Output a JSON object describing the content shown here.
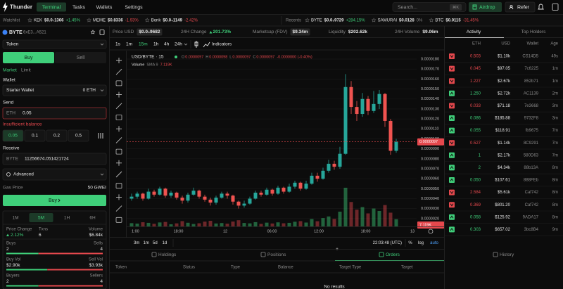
{
  "nav": {
    "brand": "Thunder",
    "tabs": [
      "Terminal",
      "Tasks",
      "Wallets",
      "Settings"
    ],
    "search": "Search...",
    "shortcut": "⌘K",
    "airdrop": "Airdrop",
    "refer": "Refer"
  },
  "watchlist": {
    "label": "Watchlist",
    "items": [
      {
        "symbol": "KEK",
        "price": "$0.0₇1366",
        "change": "+1.45%",
        "trend": "up"
      },
      {
        "symbol": "MEME",
        "price": "$0.8336",
        "change": "-1.93%",
        "trend": "down"
      },
      {
        "symbol": "Bonk",
        "price": "$0.0₄1149",
        "change": "-2.42%",
        "trend": "down"
      }
    ]
  },
  "recents": {
    "label": "Recents",
    "items": [
      {
        "symbol": "BYTE",
        "price": "$0.0₅9729",
        "change": "+284.15%",
        "trend": "up"
      },
      {
        "symbol": "SAMURAI",
        "price": "$0.0128",
        "change": "0%",
        "trend": "flat"
      },
      {
        "symbol": "BTC",
        "price": "$0.0115",
        "change": "-31.45%",
        "trend": "down"
      }
    ]
  },
  "token": {
    "symbol": "BYTE",
    "address": "6xE3...A521"
  },
  "trade": {
    "token_select": "Token",
    "buy": "Buy",
    "sell": "Sell",
    "order_types": [
      "Market",
      "Limit"
    ],
    "wallet_label": "Wallet",
    "wallet": "Starter Wallet",
    "wallet_balance": "0 ETH",
    "send_label": "Send",
    "send_currency": "ETH",
    "send_amount": "0.05",
    "error": "Insufficient balance",
    "presets": [
      "0.05",
      "0.1",
      "0.2",
      "0.5"
    ],
    "receive_label": "Receive",
    "receive_currency": "BYTE",
    "receive_amount": "11256674.051421724",
    "advanced": "Advanced",
    "gas_label": "Gas Price",
    "gas_value": "50 GWEI",
    "submit": "Buy"
  },
  "stats": {
    "tabs": [
      "1M",
      "5M",
      "1H",
      "6H"
    ],
    "price_change_label": "Price Change",
    "price_change": "2.12%",
    "txns_label": "Txns",
    "txns": 6,
    "volume_label": "Volume",
    "volume": "$6.84k",
    "buys_label": "Buys",
    "buys": 2,
    "sells_label": "Sells",
    "sells": 4,
    "buy_vol_label": "Buy Vol",
    "buy_vol": {
      "value": 2900,
      "label": "$2.90k"
    },
    "sell_vol_label": "Sell Vol",
    "sell_vol": {
      "value": 3930,
      "label": "$3.93k"
    },
    "buyers_label": "Buyers",
    "buyers": 2,
    "sellers_label": "Sellers",
    "sellers": 4
  },
  "market": [
    {
      "label": "Price USD",
      "value": "$0.0₅9682",
      "style": "box"
    },
    {
      "label": "24H Change",
      "value": "201.73%",
      "style": "up"
    },
    {
      "label": "Marketcap (FDV)",
      "value": "$9.34m",
      "style": "box"
    },
    {
      "label": "Liquidity",
      "value": "$202.62k",
      "style": "plain"
    },
    {
      "label": "24H Volume",
      "value": "$9.06m",
      "style": "plain"
    }
  ],
  "chart": {
    "type": "candlestick",
    "timeframes": [
      "1s",
      "1m",
      "15m",
      "1h",
      "4h",
      "24h"
    ],
    "indicators": "Indicators",
    "pair": "USD/BYTE · 15",
    "ohlc": [
      {
        "key": "O",
        "value": "0.0000097"
      },
      {
        "key": "H",
        "value": "0.0000098"
      },
      {
        "key": "L",
        "value": "0.0000097"
      },
      {
        "key": "C",
        "value": "0.0000097"
      }
    ],
    "change": "-0.0000000 (-0.40%)",
    "volume_label": "Volume",
    "sma_label": "SMA 9",
    "sma_value": "7.119K",
    "last_price": {
      "value": 9.7e-06,
      "label": "0.0000097"
    },
    "ylim": [
      1e-06,
      1.85e-05
    ],
    "yticks": [
      {
        "value": 1.8e-05,
        "label": "0.0000180"
      },
      {
        "value": 1.7e-05,
        "label": "0.0000170"
      },
      {
        "value": 1.6e-05,
        "label": "0.0000160"
      },
      {
        "value": 1.5e-05,
        "label": "0.0000150"
      },
      {
        "value": 1.4e-05,
        "label": "0.0000140"
      },
      {
        "value": 1.3e-05,
        "label": "0.0000130"
      },
      {
        "value": 1.2e-05,
        "label": "0.0000120"
      },
      {
        "value": 1.1e-05,
        "label": "0.0000110"
      },
      {
        "value": 1e-05,
        "label": "0.0000100"
      },
      {
        "value": 9e-06,
        "label": "0.0000090"
      },
      {
        "value": 8e-06,
        "label": "0.0000080"
      },
      {
        "value": 7e-06,
        "label": "0.0000070"
      },
      {
        "value": 6e-06,
        "label": "0.0000060"
      },
      {
        "value": 5e-06,
        "label": "0.0000050"
      },
      {
        "value": 4e-06,
        "label": "0.0000040"
      },
      {
        "value": 3e-06,
        "label": "0.0000030"
      },
      {
        "value": 2e-06,
        "label": "0.0000020"
      }
    ],
    "x_labels": [
      "1:00",
      "18:00",
      "12",
      "06:00",
      "12:00",
      "18:00",
      "13"
    ],
    "open": [
      4e-06,
      4.2e-06,
      4.5e-06,
      4e-06,
      4.7e-06,
      4.4e-06,
      5e-06,
      4.3e-06,
      4.6e-06,
      4.1e-06,
      3.8e-06,
      4.4e-06,
      4.8e-06,
      4.2e-06,
      3.9e-06,
      3.6e-06,
      4.1e-06,
      4.5e-06,
      4.3e-06,
      3.7e-06,
      3.3e-06,
      3.5e-06,
      4e-06,
      4.6e-06,
      4.4e-06,
      4.9e-06,
      4.5e-06,
      5.1e-06,
      4.7e-06,
      5.2e-06,
      5.6e-06,
      5e-06,
      5.5e-06,
      6.3e-06,
      6e-06,
      6.8e-06,
      7.5e-06,
      7.2e-06,
      8.5e-06,
      1.52e-05,
      1.32e-05,
      1.25e-05,
      1.4e-05,
      1.28e-05,
      1.35e-05,
      1.45e-05,
      1.18e-05,
      8.8e-06
    ],
    "high": [
      4.5e-06,
      4.7e-06,
      4.6e-06,
      5e-06,
      4.9e-06,
      5.2e-06,
      5.1e-06,
      4.8e-06,
      4.7e-06,
      4.3e-06,
      4.6e-06,
      5.1e-06,
      4.9e-06,
      4.4e-06,
      4.1e-06,
      4.3e-06,
      4.7e-06,
      4.7e-06,
      4.4e-06,
      3.8e-06,
      3.8e-06,
      4.2e-06,
      4.8e-06,
      4.8e-06,
      5.1e-06,
      5e-06,
      5.3e-06,
      5.2e-06,
      5.5e-06,
      5.8e-06,
      5.7e-06,
      5.8e-06,
      6.6e-06,
      6.6e-06,
      7.1e-06,
      7.9e-06,
      7.8e-06,
      9.2e-06,
      1.65e-05,
      1.58e-05,
      1.38e-05,
      1.46e-05,
      1.43e-05,
      1.48e-05,
      1.49e-05,
      1.46e-05,
      1.2e-05,
      1e-05
    ],
    "low": [
      3.8e-06,
      4e-06,
      3.8e-06,
      3.9e-06,
      4.2e-06,
      4.3e-06,
      4.1e-06,
      4.1e-06,
      3.9e-06,
      3.5e-06,
      3.6e-06,
      4.3e-06,
      4e-06,
      3.7e-06,
      3.3e-06,
      3.4e-06,
      4e-06,
      4e-06,
      3.4e-06,
      3e-06,
      3.1e-06,
      3.4e-06,
      3.9e-06,
      4.2e-06,
      4.3e-06,
      4.3e-06,
      4.4e-06,
      4.5e-06,
      4.6e-06,
      5e-06,
      4.8e-06,
      4.9e-06,
      5.4e-06,
      5.7e-06,
      5.9e-06,
      6.6e-06,
      6.9e-06,
      7e-06,
      8.4e-06,
      1.25e-05,
      1.18e-05,
      1.22e-05,
      1.24e-05,
      1.26e-05,
      1.3e-05,
      1.12e-05,
      8.4e-06,
      8.6e-06
    ],
    "close": [
      4.2e-06,
      4.5e-06,
      4e-06,
      4.7e-06,
      4.4e-06,
      5e-06,
      4.3e-06,
      4.6e-06,
      4.1e-06,
      3.8e-06,
      4.4e-06,
      4.8e-06,
      4.2e-06,
      3.9e-06,
      3.6e-06,
      4.1e-06,
      4.5e-06,
      4.3e-06,
      3.7e-06,
      3.3e-06,
      3.5e-06,
      4e-06,
      4.6e-06,
      4.4e-06,
      4.9e-06,
      4.5e-06,
      5.1e-06,
      4.7e-06,
      5.2e-06,
      5.6e-06,
      5e-06,
      5.5e-06,
      6.3e-06,
      6e-06,
      6.8e-06,
      7.5e-06,
      7.2e-06,
      8.5e-06,
      1.52e-05,
      1.32e-05,
      1.25e-05,
      1.4e-05,
      1.28e-05,
      1.35e-05,
      1.45e-05,
      1.18e-05,
      8.8e-06,
      9.7e-06
    ],
    "volume": [
      3200,
      2800,
      4100,
      3500,
      2600,
      3900,
      4400,
      2100,
      3000,
      5200,
      3600,
      2400,
      3100,
      4700,
      5500,
      2900,
      3300,
      2700,
      4800,
      6100,
      3400,
      3000,
      4200,
      2500,
      3700,
      2900,
      4000,
      3100,
      3500,
      4600,
      5200,
      3800,
      7300,
      5100,
      8200,
      9800,
      7400,
      14500,
      38000,
      24000,
      16500,
      19000,
      12800,
      17600,
      15200,
      21000,
      13500,
      7119
    ],
    "ranges": [
      "3m",
      "1m",
      "5d",
      "1d"
    ],
    "clock": "22:03:48 (UTC)",
    "scale_options": [
      "%",
      "log",
      "auto"
    ]
  },
  "activity": {
    "tabs": [
      "Activity",
      "Top Holders"
    ],
    "columns": [
      "ETH",
      "USD",
      "Wallet",
      "Age"
    ],
    "rows": [
      {
        "side": "sell",
        "eth": "0.503",
        "usd": "$1.10k",
        "wallet": "CS14D5",
        "age": "49s"
      },
      {
        "side": "sell",
        "eth": "0.045",
        "usd": "$97.05",
        "wallet": "7c6225",
        "age": "1m"
      },
      {
        "side": "sell",
        "eth": "1.227",
        "usd": "$2.67k",
        "wallet": "852b71",
        "age": "1m"
      },
      {
        "side": "buy",
        "eth": "1.250",
        "usd": "$2.72k",
        "wallet": "AC1139",
        "age": "2m"
      },
      {
        "side": "sell",
        "eth": "0.033",
        "usd": "$71.18",
        "wallet": "7e3668",
        "age": "3m"
      },
      {
        "side": "buy",
        "eth": "0.086",
        "usd": "$185.88",
        "wallet": "9732F8",
        "age": "3m"
      },
      {
        "side": "buy",
        "eth": "0.055",
        "usd": "$118.91",
        "wallet": "fb9675",
        "age": "7m"
      },
      {
        "side": "sell",
        "eth": "0.527",
        "usd": "$1.14k",
        "wallet": "8C9291",
        "age": "7m"
      },
      {
        "side": "buy",
        "eth": "1",
        "usd": "$2.17k",
        "wallet": "580D63",
        "age": "7m"
      },
      {
        "side": "buy",
        "eth": "2",
        "usd": "$4.34k",
        "wallet": "88b13A",
        "age": "8m"
      },
      {
        "side": "buy",
        "eth": "0.050",
        "usd": "$107.61",
        "wallet": "888FEb",
        "age": "8m"
      },
      {
        "side": "sell",
        "eth": "2.584",
        "usd": "$5.61k",
        "wallet": "Caf742",
        "age": "8m"
      },
      {
        "side": "sell",
        "eth": "0.369",
        "usd": "$801.20",
        "wallet": "Caf742",
        "age": "8m"
      },
      {
        "side": "buy",
        "eth": "0.058",
        "usd": "$125.92",
        "wallet": "9ADA17",
        "age": "8m"
      },
      {
        "side": "buy",
        "eth": "0.303",
        "usd": "$657.02",
        "wallet": "3bc8B4",
        "age": "9m"
      }
    ]
  },
  "orders": {
    "tabs": [
      "Holdings",
      "Positions",
      "Orders",
      "History"
    ],
    "columns": [
      "Token",
      "Status",
      "Type",
      "Balance",
      "Target Type",
      "Target",
      "Gas",
      "Expiration"
    ],
    "empty": "No results"
  }
}
